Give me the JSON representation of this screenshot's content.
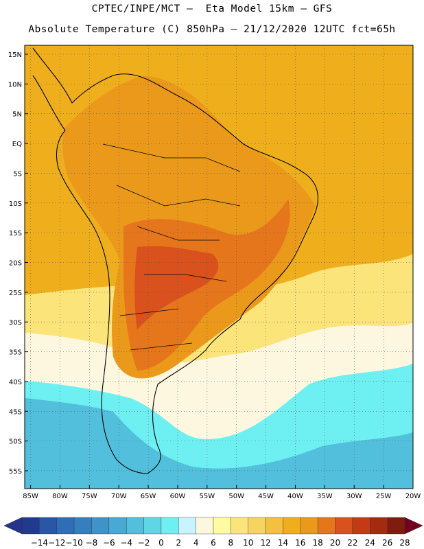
{
  "header": {
    "line1": "CPTEC/INPE/MCT –  Eta Model 15km – GFS",
    "line2": "Absolute Temperature (C) 850hPa – 21/12/2020 12UTC fct=65h"
  },
  "axes": {
    "lat_labels": [
      "15N",
      "10N",
      "5N",
      "EQ",
      "5S",
      "10S",
      "15S",
      "20S",
      "25S",
      "30S",
      "35S",
      "40S",
      "45S",
      "50S",
      "55S"
    ],
    "lat_values": [
      15,
      10,
      5,
      0,
      -5,
      -10,
      -15,
      -20,
      -25,
      -30,
      -35,
      -40,
      -45,
      -50,
      -55
    ],
    "lon_labels": [
      "85W",
      "80W",
      "75W",
      "70W",
      "65W",
      "60W",
      "55W",
      "50W",
      "45W",
      "40W",
      "35W",
      "30W",
      "25W",
      "20W"
    ],
    "lon_values": [
      -85,
      -80,
      -75,
      -70,
      -65,
      -60,
      -55,
      -50,
      -45,
      -40,
      -35,
      -30,
      -25,
      -20
    ],
    "lat_range": [
      -58,
      16.5
    ],
    "lon_range": [
      -86,
      -20
    ]
  },
  "colorbar": {
    "labels": [
      "-14",
      "-12",
      "-10",
      "-8",
      "-6",
      "-4",
      "-2",
      "0",
      "2",
      "4",
      "6",
      "8",
      "10",
      "12",
      "14",
      "16",
      "18",
      "20",
      "22",
      "24",
      "26",
      "28"
    ],
    "colors": [
      "#1f3a8f",
      "#2a56a6",
      "#2f6db4",
      "#357fbf",
      "#3f93c9",
      "#48a9d3",
      "#52bfdc",
      "#5ed6e6",
      "#6ef0f2",
      "#c9f4ff",
      "#fdf7e0",
      "#fffba0",
      "#fbe57b",
      "#f6d45f",
      "#f3c13f",
      "#efaf1d",
      "#eb991b",
      "#e6761c",
      "#d9521d",
      "#c43a16",
      "#a52a12",
      "#7e1c0e"
    ],
    "under_color": "#26338c",
    "over_color": "#73001e"
  },
  "map_layers": {
    "background": "#efaf1d",
    "cold_south": "#52bfdc",
    "cool_band": "#6ef0f2",
    "mild_band": "#fdf7e0",
    "warm_band": "#fbe57b",
    "land_hot": "#eb991b",
    "land_hotter": "#e6761c",
    "land_hottest": "#d9521d",
    "coast": "#000000"
  }
}
